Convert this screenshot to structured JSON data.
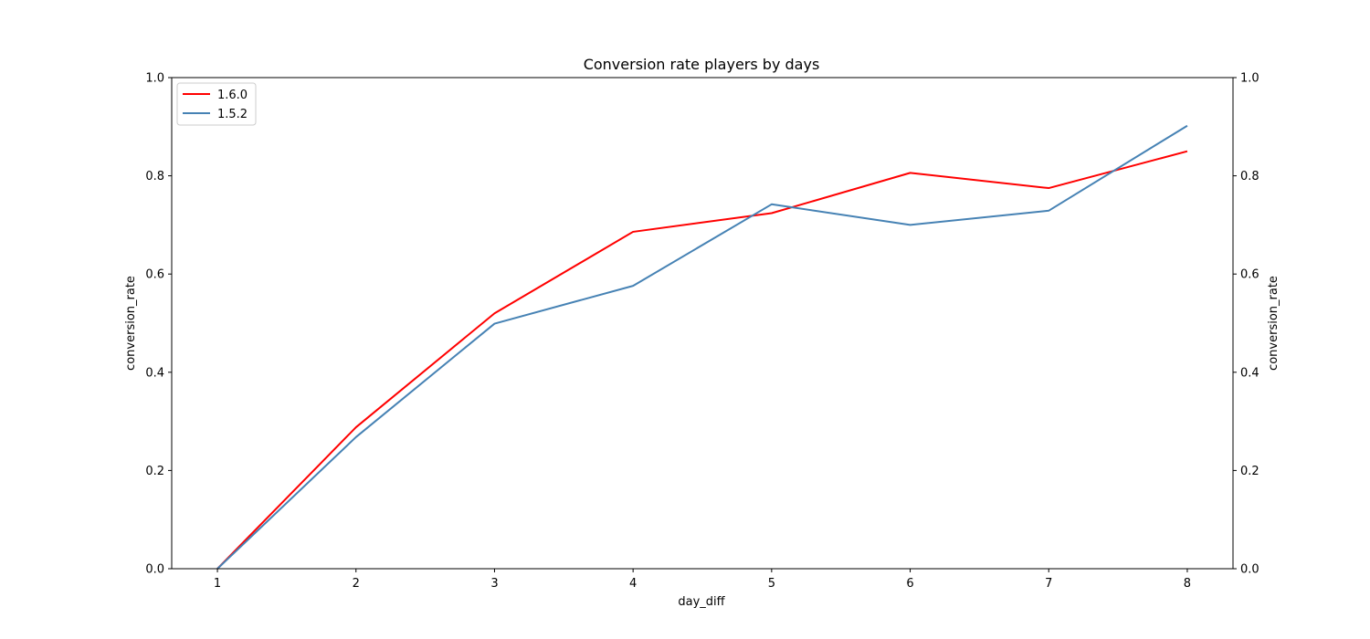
{
  "chart_data": {
    "type": "line",
    "title": "Conversion rate players by days",
    "xlabel": "day_diff",
    "ylabel": "conversion_rate",
    "ylabel_right": "conversion_rate",
    "x": [
      1,
      2,
      3,
      4,
      5,
      6,
      7,
      8
    ],
    "xlim": [
      0.67,
      8.33
    ],
    "ylim": [
      0,
      1.0
    ],
    "xticks": [
      1,
      2,
      3,
      4,
      5,
      6,
      7,
      8
    ],
    "yticks": [
      "0.0",
      "0.2",
      "0.4",
      "0.6",
      "0.8",
      "1.0"
    ],
    "grid": false,
    "legend_position": "top-left",
    "series": [
      {
        "name": "1.6.0",
        "color": "#ff0000",
        "values": [
          0.0,
          0.288,
          0.52,
          0.686,
          0.724,
          0.806,
          0.775,
          0.85
        ]
      },
      {
        "name": "1.5.2",
        "color": "#4682b4",
        "values": [
          0.0,
          0.268,
          0.499,
          0.576,
          0.742,
          0.7,
          0.729,
          0.902
        ]
      }
    ]
  }
}
